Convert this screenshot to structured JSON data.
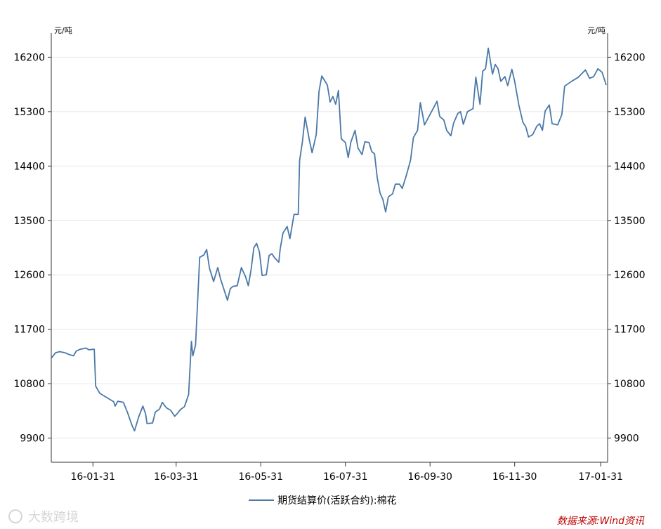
{
  "chart_data": {
    "type": "line",
    "unit_left": "元/吨",
    "unit_right": "元/吨",
    "ylim": [
      9500,
      16600
    ],
    "yticks": [
      9900,
      10800,
      11700,
      12600,
      13500,
      14400,
      15300,
      16200
    ],
    "x_range": [
      "2016-01-01",
      "2017-02-05"
    ],
    "xticks": [
      {
        "date": "2016-01-31",
        "label": "16-01-31"
      },
      {
        "date": "2016-03-31",
        "label": "16-03-31"
      },
      {
        "date": "2016-05-31",
        "label": "16-05-31"
      },
      {
        "date": "2016-07-31",
        "label": "16-07-31"
      },
      {
        "date": "2016-09-30",
        "label": "16-09-30"
      },
      {
        "date": "2016-11-30",
        "label": "16-11-30"
      },
      {
        "date": "2017-01-31",
        "label": "17-01-31"
      }
    ],
    "grid": "horizontal",
    "legend": "bottom-center",
    "series": [
      {
        "name": "期货结算价(活跃合约):棉花",
        "color": "#4a78a8",
        "points": [
          [
            "2016-01-01",
            11220
          ],
          [
            "2016-01-04",
            11310
          ],
          [
            "2016-01-07",
            11330
          ],
          [
            "2016-01-11",
            11310
          ],
          [
            "2016-01-14",
            11280
          ],
          [
            "2016-01-17",
            11260
          ],
          [
            "2016-01-19",
            11340
          ],
          [
            "2016-01-22",
            11370
          ],
          [
            "2016-01-26",
            11390
          ],
          [
            "2016-01-28",
            11360
          ],
          [
            "2016-02-01",
            11370
          ],
          [
            "2016-02-02",
            10760
          ],
          [
            "2016-02-05",
            10640
          ],
          [
            "2016-02-10",
            10570
          ],
          [
            "2016-02-15",
            10500
          ],
          [
            "2016-02-16",
            10430
          ],
          [
            "2016-02-18",
            10510
          ],
          [
            "2016-02-22",
            10490
          ],
          [
            "2016-02-25",
            10320
          ],
          [
            "2016-02-28",
            10120
          ],
          [
            "2016-03-01",
            10020
          ],
          [
            "2016-03-04",
            10250
          ],
          [
            "2016-03-07",
            10430
          ],
          [
            "2016-03-09",
            10300
          ],
          [
            "2016-03-10",
            10140
          ],
          [
            "2016-03-14",
            10150
          ],
          [
            "2016-03-16",
            10330
          ],
          [
            "2016-03-19",
            10380
          ],
          [
            "2016-03-21",
            10490
          ],
          [
            "2016-03-24",
            10400
          ],
          [
            "2016-03-27",
            10360
          ],
          [
            "2016-03-30",
            10260
          ],
          [
            "2016-04-01",
            10310
          ],
          [
            "2016-04-03",
            10370
          ],
          [
            "2016-04-06",
            10420
          ],
          [
            "2016-04-09",
            10620
          ],
          [
            "2016-04-11",
            11500
          ],
          [
            "2016-04-12",
            11260
          ],
          [
            "2016-04-14",
            11440
          ],
          [
            "2016-04-17",
            12890
          ],
          [
            "2016-04-20",
            12930
          ],
          [
            "2016-04-22",
            13020
          ],
          [
            "2016-04-24",
            12710
          ],
          [
            "2016-04-27",
            12490
          ],
          [
            "2016-04-30",
            12720
          ],
          [
            "2016-05-02",
            12530
          ],
          [
            "2016-05-05",
            12320
          ],
          [
            "2016-05-07",
            12180
          ],
          [
            "2016-05-09",
            12370
          ],
          [
            "2016-05-11",
            12410
          ],
          [
            "2016-05-14",
            12420
          ],
          [
            "2016-05-17",
            12720
          ],
          [
            "2016-05-20",
            12570
          ],
          [
            "2016-05-22",
            12420
          ],
          [
            "2016-05-24",
            12680
          ],
          [
            "2016-05-26",
            13050
          ],
          [
            "2016-05-28",
            13120
          ],
          [
            "2016-05-30",
            12980
          ],
          [
            "2016-06-01",
            12590
          ],
          [
            "2016-06-04",
            12600
          ],
          [
            "2016-06-06",
            12920
          ],
          [
            "2016-06-08",
            12950
          ],
          [
            "2016-06-10",
            12880
          ],
          [
            "2016-06-13",
            12810
          ],
          [
            "2016-06-14",
            13030
          ],
          [
            "2016-06-16",
            13290
          ],
          [
            "2016-06-19",
            13400
          ],
          [
            "2016-06-21",
            13200
          ],
          [
            "2016-06-24",
            13600
          ],
          [
            "2016-06-27",
            13600
          ],
          [
            "2016-06-28",
            14490
          ],
          [
            "2016-06-30",
            14800
          ],
          [
            "2016-07-02",
            15210
          ],
          [
            "2016-07-05",
            14830
          ],
          [
            "2016-07-07",
            14620
          ],
          [
            "2016-07-10",
            14920
          ],
          [
            "2016-07-12",
            15640
          ],
          [
            "2016-07-14",
            15890
          ],
          [
            "2016-07-18",
            15740
          ],
          [
            "2016-07-20",
            15460
          ],
          [
            "2016-07-22",
            15550
          ],
          [
            "2016-07-24",
            15420
          ],
          [
            "2016-07-26",
            15650
          ],
          [
            "2016-07-28",
            14850
          ],
          [
            "2016-07-31",
            14790
          ],
          [
            "2016-08-02",
            14540
          ],
          [
            "2016-08-04",
            14800
          ],
          [
            "2016-08-07",
            14990
          ],
          [
            "2016-08-09",
            14700
          ],
          [
            "2016-08-12",
            14590
          ],
          [
            "2016-08-14",
            14800
          ],
          [
            "2016-08-17",
            14790
          ],
          [
            "2016-08-19",
            14640
          ],
          [
            "2016-08-21",
            14600
          ],
          [
            "2016-08-23",
            14200
          ],
          [
            "2016-08-25",
            13950
          ],
          [
            "2016-08-27",
            13850
          ],
          [
            "2016-08-29",
            13640
          ],
          [
            "2016-08-31",
            13890
          ],
          [
            "2016-09-03",
            13940
          ],
          [
            "2016-09-05",
            14100
          ],
          [
            "2016-09-08",
            14100
          ],
          [
            "2016-09-10",
            14030
          ],
          [
            "2016-09-13",
            14250
          ],
          [
            "2016-09-16",
            14500
          ],
          [
            "2016-09-18",
            14870
          ],
          [
            "2016-09-21",
            14990
          ],
          [
            "2016-09-23",
            15450
          ],
          [
            "2016-09-26",
            15080
          ],
          [
            "2016-10-05",
            15470
          ],
          [
            "2016-10-07",
            15220
          ],
          [
            "2016-10-10",
            15160
          ],
          [
            "2016-10-12",
            14990
          ],
          [
            "2016-10-15",
            14900
          ],
          [
            "2016-10-17",
            15110
          ],
          [
            "2016-10-20",
            15270
          ],
          [
            "2016-10-22",
            15300
          ],
          [
            "2016-10-24",
            15090
          ],
          [
            "2016-10-27",
            15300
          ],
          [
            "2016-10-31",
            15350
          ],
          [
            "2016-11-02",
            15870
          ],
          [
            "2016-11-05",
            15420
          ],
          [
            "2016-11-07",
            15970
          ],
          [
            "2016-11-09",
            16010
          ],
          [
            "2016-11-11",
            16350
          ],
          [
            "2016-11-14",
            15920
          ],
          [
            "2016-11-16",
            16080
          ],
          [
            "2016-11-18",
            16010
          ],
          [
            "2016-11-20",
            15800
          ],
          [
            "2016-11-23",
            15880
          ],
          [
            "2016-11-25",
            15730
          ],
          [
            "2016-11-28",
            16000
          ],
          [
            "2016-11-30",
            15800
          ],
          [
            "2016-12-03",
            15410
          ],
          [
            "2016-12-06",
            15120
          ],
          [
            "2016-12-08",
            15050
          ],
          [
            "2016-12-10",
            14880
          ],
          [
            "2016-12-13",
            14920
          ],
          [
            "2016-12-16",
            15060
          ],
          [
            "2016-12-18",
            15100
          ],
          [
            "2016-12-20",
            14990
          ],
          [
            "2016-12-22",
            15310
          ],
          [
            "2016-12-25",
            15410
          ],
          [
            "2016-12-27",
            15100
          ],
          [
            "2016-12-31",
            15080
          ],
          [
            "2017-01-03",
            15250
          ],
          [
            "2017-01-05",
            15720
          ],
          [
            "2017-01-10",
            15800
          ],
          [
            "2017-01-15",
            15870
          ],
          [
            "2017-01-20",
            15990
          ],
          [
            "2017-01-23",
            15850
          ],
          [
            "2017-01-26",
            15880
          ],
          [
            "2017-01-29",
            16010
          ],
          [
            "2017-02-01",
            15950
          ],
          [
            "2017-02-04",
            15740
          ]
        ]
      }
    ]
  },
  "legend": {
    "label": "期货结算价(活跃合约):棉花"
  },
  "source": "数据来源:Wind资讯",
  "watermark": "大数跨境"
}
